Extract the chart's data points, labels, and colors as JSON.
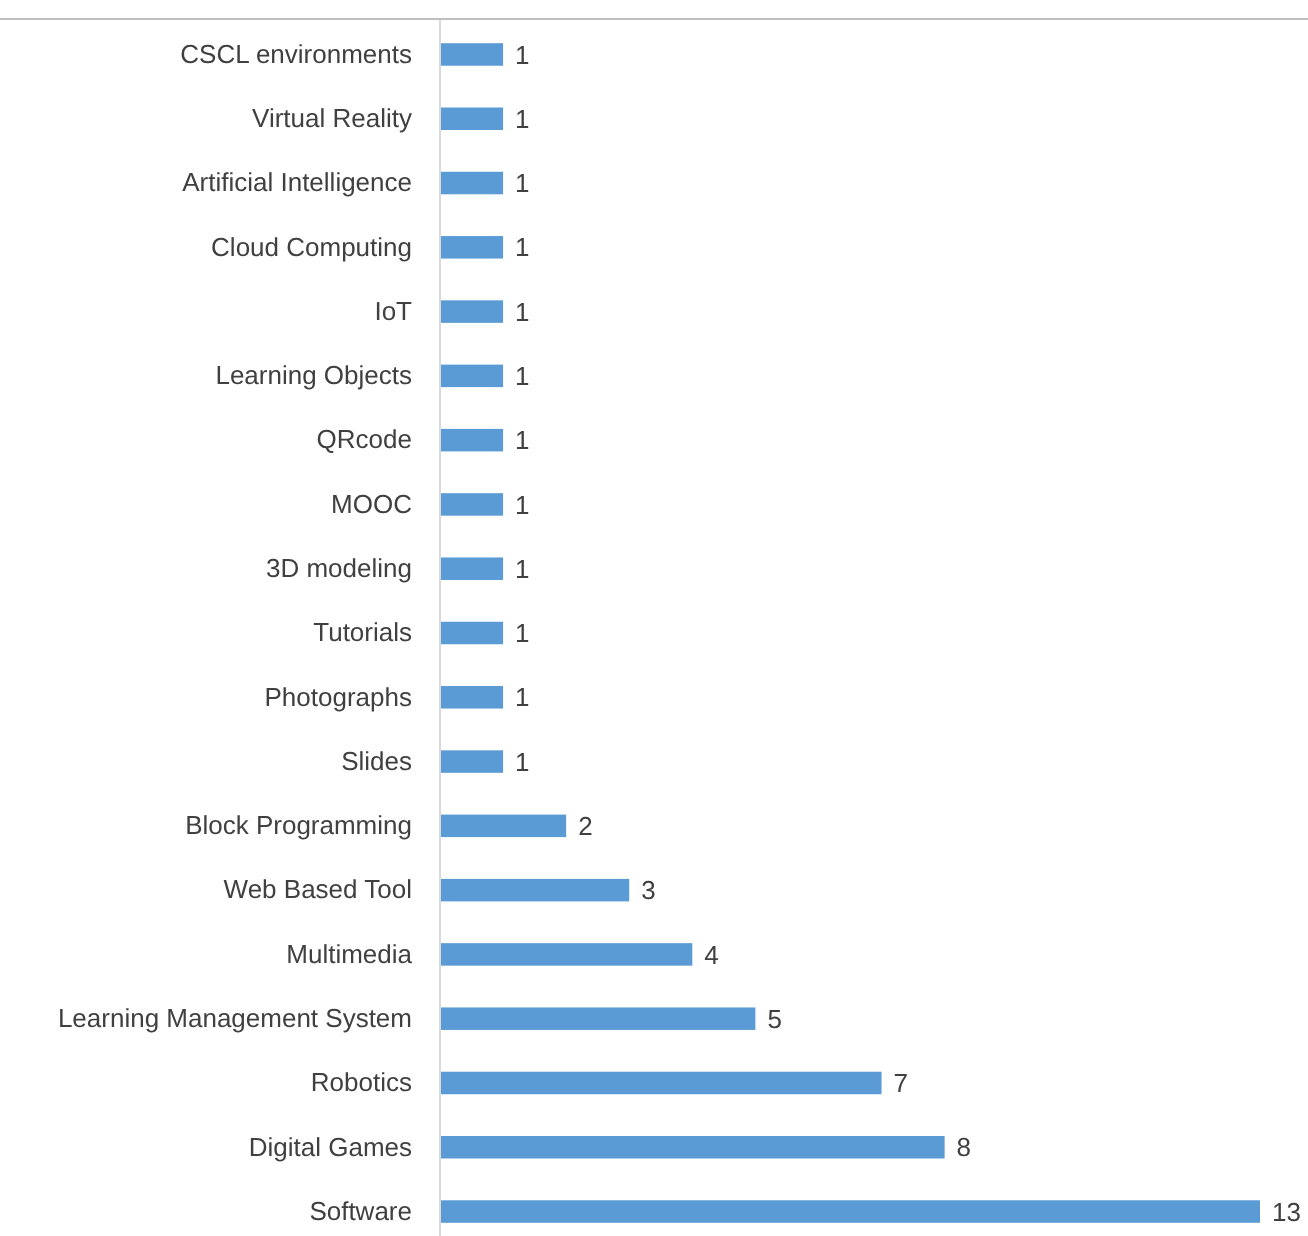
{
  "chart_data": {
    "type": "bar",
    "orientation": "horizontal",
    "data_labels": true,
    "tick_labels": "y",
    "color": "#5b9bd5",
    "categories": [
      "CSCL environments",
      "Virtual Reality",
      "Artificial Intelligence",
      "Cloud Computing",
      "IoT",
      "Learning Objects",
      "QRcode",
      "MOOC",
      "3D modeling",
      "Tutorials",
      "Photographs",
      "Slides",
      "Block Programming",
      "Web Based Tool",
      "Multimedia",
      "Learning Management System",
      "Robotics",
      "Digital Games",
      "Software"
    ],
    "values": [
      1,
      1,
      1,
      1,
      1,
      1,
      1,
      1,
      1,
      1,
      1,
      1,
      2,
      3,
      4,
      5,
      7,
      8,
      13
    ]
  }
}
